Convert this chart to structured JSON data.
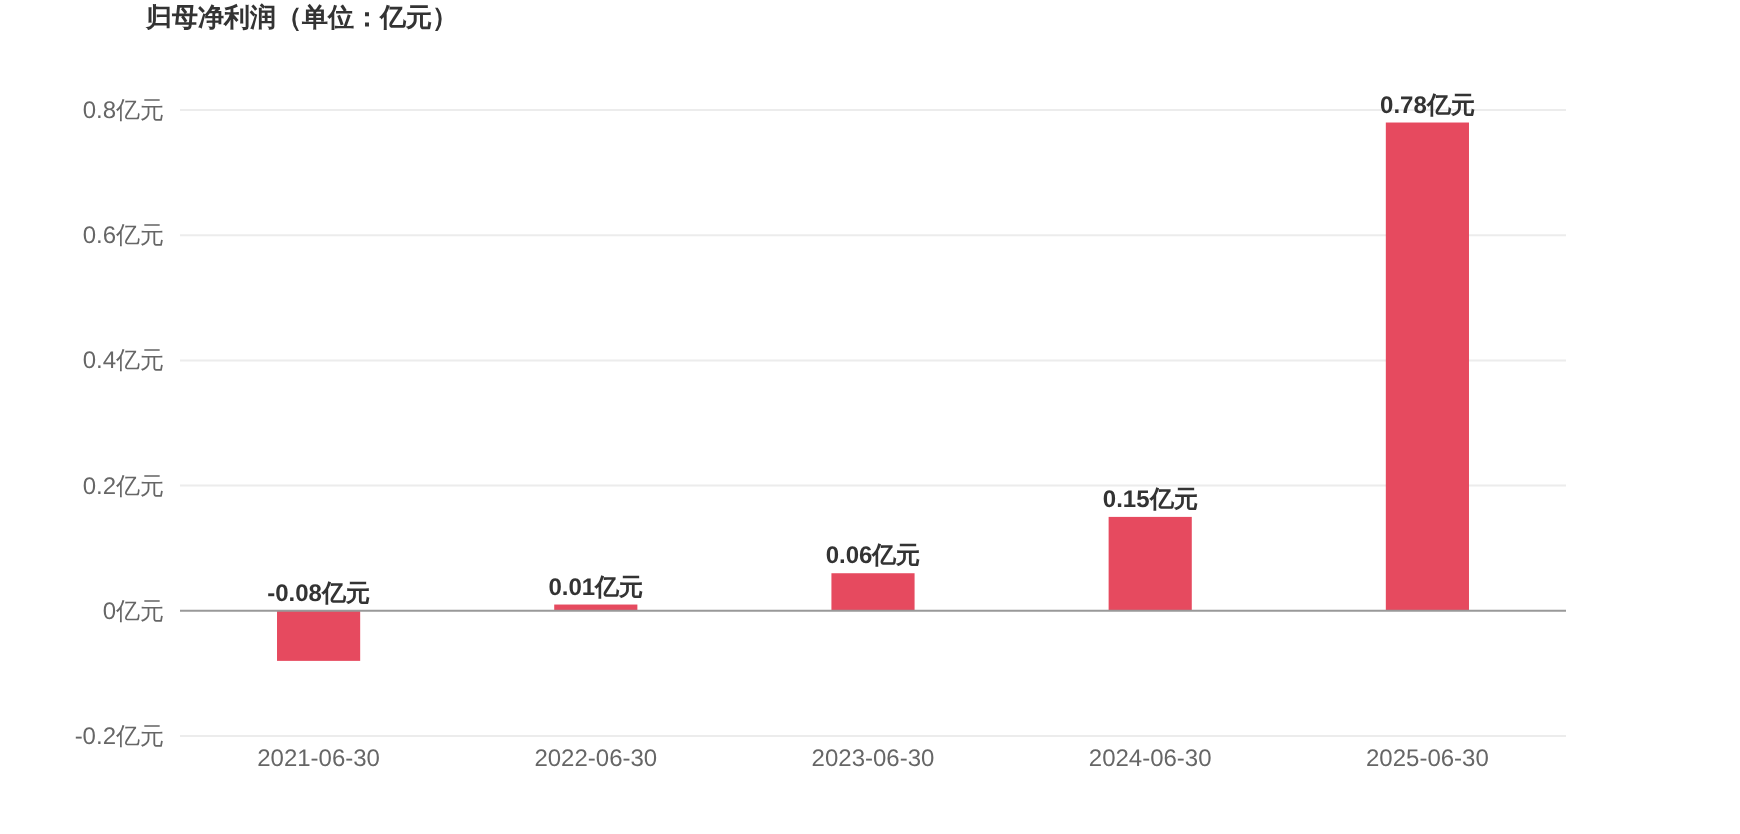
{
  "chart_data": {
    "type": "bar",
    "title": "归母净利润（单位：亿元）",
    "categories": [
      "2021-06-30",
      "2022-06-30",
      "2023-06-30",
      "2024-06-30",
      "2025-06-30"
    ],
    "values": [
      -0.08,
      0.01,
      0.06,
      0.15,
      0.78
    ],
    "value_labels": [
      "-0.08亿元",
      "0.01亿元",
      "0.06亿元",
      "0.15亿元",
      "0.78亿元"
    ],
    "color": "#e64a5f",
    "ylim": [
      -0.2,
      0.8
    ],
    "yticks": [
      {
        "value": -0.2,
        "label": "-0.2亿元"
      },
      {
        "value": 0,
        "label": "0亿元"
      },
      {
        "value": 0.2,
        "label": "0.2亿元"
      },
      {
        "value": 0.4,
        "label": "0.4亿元"
      },
      {
        "value": 0.6,
        "label": "0.6亿元"
      },
      {
        "value": 0.8,
        "label": "0.8亿元"
      }
    ],
    "grid": "y"
  }
}
